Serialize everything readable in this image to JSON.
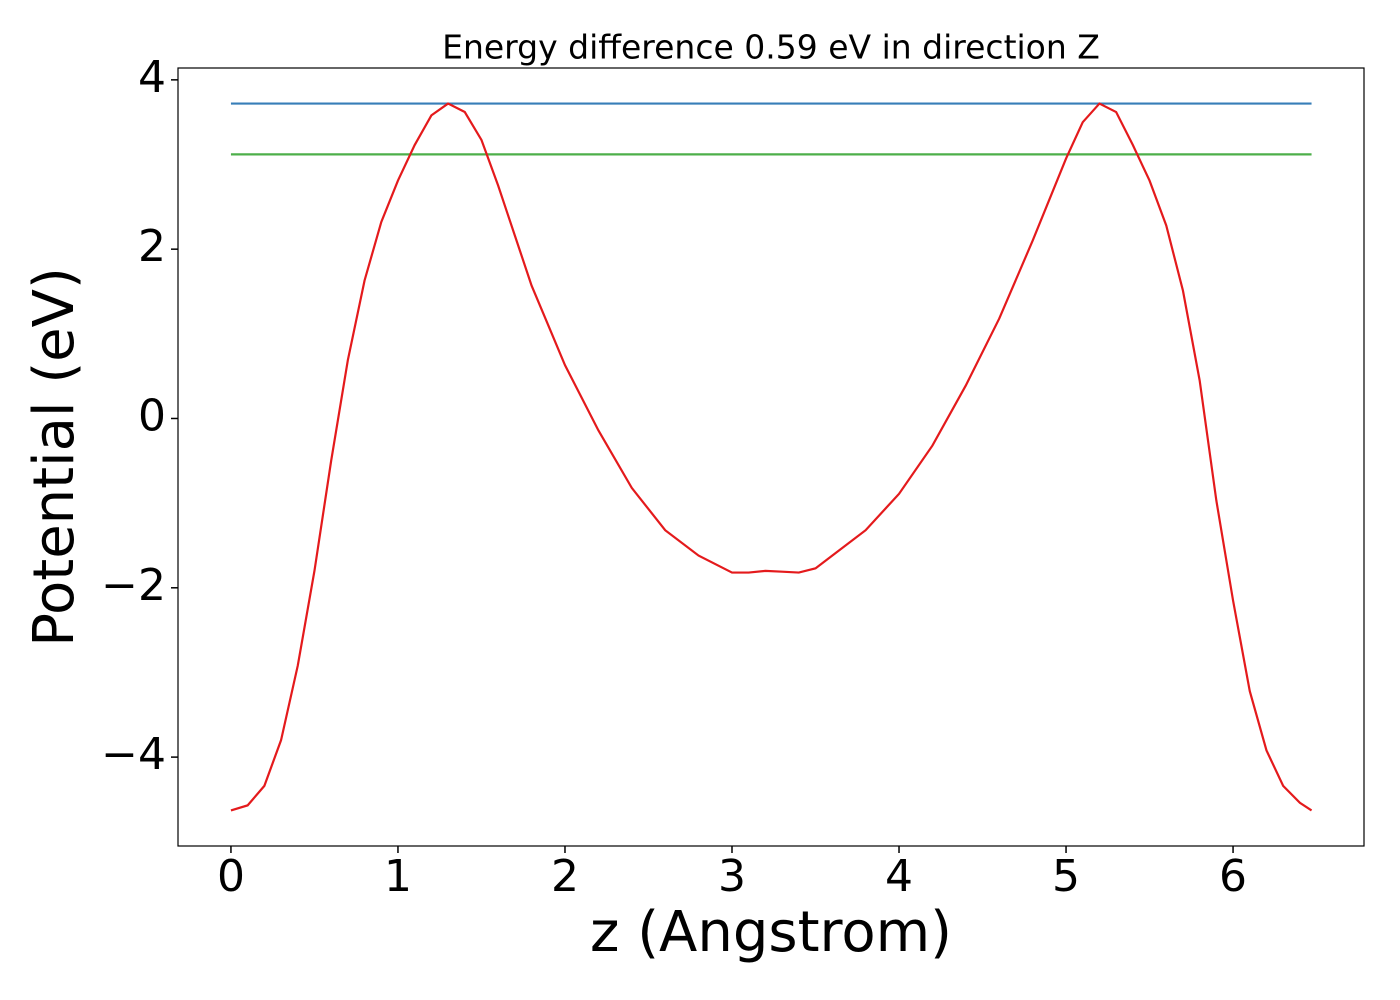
{
  "chart_data": {
    "type": "line",
    "title": "Energy difference 0.59 eV in direction Z",
    "x_label": "z (Angstrom)",
    "y_label": "Potential (eV)",
    "xlim": [
      -0.317,
      6.784
    ],
    "ylim": [
      -5.05,
      4.14
    ],
    "xticks": [
      0,
      1,
      2,
      3,
      4,
      5,
      6
    ],
    "yticks": [
      {
        "value": -4,
        "label": "−4"
      },
      {
        "value": -2,
        "label": "−2"
      },
      0,
      2,
      4
    ],
    "grid": false,
    "series": [
      {
        "color": "#377eb8",
        "x": [
          0,
          6.47
        ],
        "values": [
          3.72,
          3.72
        ]
      },
      {
        "color": "#4daf4a",
        "x": [
          0,
          6.47
        ],
        "values": [
          3.12,
          3.12
        ]
      },
      {
        "color": "#e41a1c",
        "x": [
          0,
          0.1,
          0.2,
          0.3,
          0.4,
          0.5,
          0.6,
          0.7,
          0.8,
          0.9,
          1.0,
          1.1,
          1.2,
          1.3,
          1.4,
          1.5,
          1.6,
          1.7,
          1.8,
          1.9,
          2.0,
          2.2,
          2.4,
          2.6,
          2.8,
          3.0,
          3.1,
          3.2,
          3.3,
          3.4,
          3.5,
          3.6,
          3.8,
          4.0,
          4.2,
          4.4,
          4.6,
          4.8,
          5.0,
          5.1,
          5.2,
          5.3,
          5.4,
          5.5,
          5.6,
          5.7,
          5.8,
          5.9,
          6.0,
          6.1,
          6.2,
          6.3,
          6.4,
          6.47
        ],
        "values": [
          -4.63,
          -4.57,
          -4.34,
          -3.8,
          -2.92,
          -1.8,
          -0.5,
          0.69,
          1.63,
          2.32,
          2.81,
          3.23,
          3.58,
          3.72,
          3.62,
          3.29,
          2.75,
          2.16,
          1.57,
          1.1,
          0.63,
          -0.14,
          -0.82,
          -1.32,
          -1.62,
          -1.82,
          -1.82,
          -1.8,
          -1.81,
          -1.82,
          -1.77,
          -1.62,
          -1.32,
          -0.89,
          -0.32,
          0.39,
          1.18,
          2.1,
          3.07,
          3.5,
          3.72,
          3.62,
          3.23,
          2.81,
          2.28,
          1.51,
          0.45,
          -0.97,
          -2.15,
          -3.22,
          -3.92,
          -4.34,
          -4.54,
          -4.63
        ]
      }
    ]
  }
}
